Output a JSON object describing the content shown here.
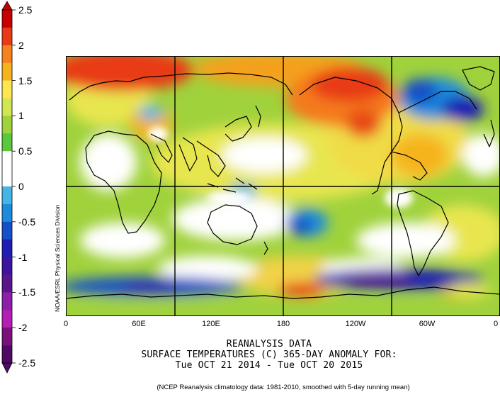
{
  "colorbar": {
    "ticks": [
      "2.5",
      "2",
      "1.5",
      "1",
      "0.5",
      "0",
      "-0.5",
      "-1",
      "-1.5",
      "-2",
      "-2.5"
    ],
    "colors": [
      "#c80000",
      "#e83a14",
      "#f5821e",
      "#f5b41e",
      "#ffe650",
      "#d2e650",
      "#a0d23c",
      "#5ac83c",
      "#ffffff",
      "#ffffff",
      "#46b4e6",
      "#1e8cdc",
      "#1450c8",
      "#1e1eb4",
      "#3c14a0",
      "#5a148c",
      "#8c1eaa",
      "#b41eb4",
      "#7a107a",
      "#500a64"
    ]
  },
  "map": {
    "lon_labels": [
      "0",
      "60E",
      "120E",
      "180",
      "120W",
      "60W",
      "0"
    ],
    "side_label": "NOAA/ESRL Physical Sciences Division"
  },
  "title": {
    "line1": "REANALYSIS DATA",
    "line2": "SURFACE TEMPERATURES (C)   365-DAY ANOMALY FOR:",
    "line3": "Tue OCT 21 2014 - Tue OCT 20 2015"
  },
  "footnote": "(NCEP Reanalysis climatology data: 1981-2010, smoothed with 5-day running mean)"
}
